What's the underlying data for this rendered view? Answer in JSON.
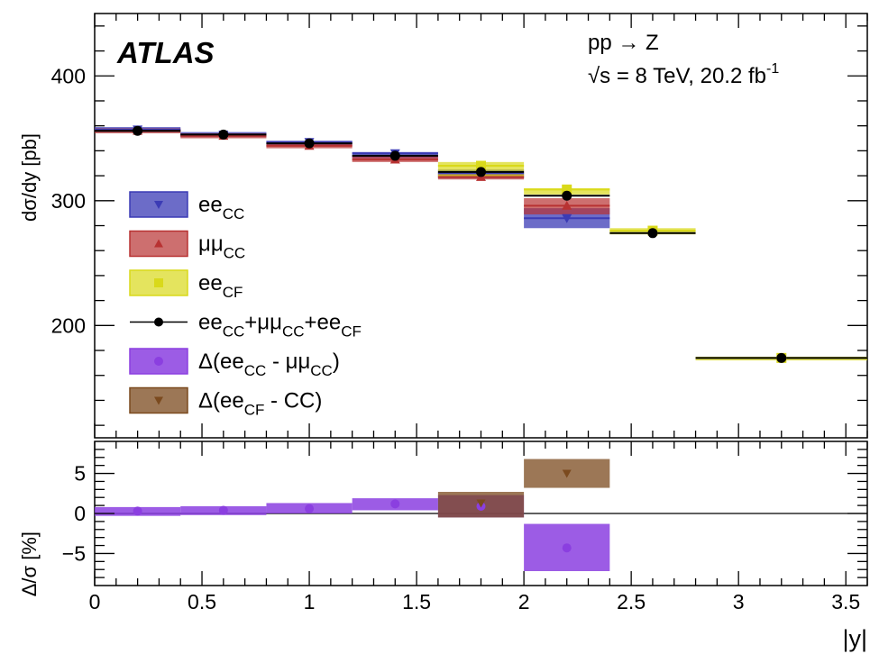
{
  "chart_data": {
    "type": "step-histogram",
    "experiment": "ATLAS",
    "process": "pp → Z",
    "energy_lumi": {
      "sqrt_s": "√s = 8 TeV, 20.2 fb",
      "lumi_exp": "-1"
    },
    "x_label": "|y|",
    "x_range": [
      0,
      3.6
    ],
    "x_ticks": [
      "0",
      "0.5",
      "1",
      "1.5",
      "2",
      "2.5",
      "3",
      "3.5"
    ],
    "bins": [
      [
        0.0,
        0.4
      ],
      [
        0.4,
        0.8
      ],
      [
        0.8,
        1.2
      ],
      [
        1.2,
        1.6
      ],
      [
        1.6,
        2.0
      ],
      [
        2.0,
        2.4
      ],
      [
        2.4,
        2.8
      ],
      [
        2.8,
        3.6
      ]
    ],
    "top_panel": {
      "y_label": "dσ/dy [pb]",
      "y_range": [
        110,
        450
      ],
      "y_ticks": [
        "200",
        "300",
        "400"
      ],
      "series": [
        {
          "name": "ee_CC",
          "color": "#3b3bb5",
          "marker": "triangle-down",
          "values": [
            357,
            353,
            347,
            338,
            322,
            286,
            null,
            null
          ],
          "band_lo": [
            355,
            351,
            344,
            334,
            318,
            278,
            null,
            null
          ],
          "band_hi": [
            359,
            355,
            348,
            339,
            325,
            294,
            null,
            null
          ]
        },
        {
          "name": "μμ_CC",
          "color": "#b83232",
          "marker": "triangle-up",
          "values": [
            356,
            352,
            344,
            333,
            319,
            296,
            null,
            null
          ],
          "band_lo": [
            354,
            350,
            342,
            331,
            317,
            289,
            null,
            null
          ],
          "band_hi": [
            358,
            354,
            346,
            336,
            322,
            302,
            null,
            null
          ]
        },
        {
          "name": "ee_CF",
          "color": "#d9d91a",
          "marker": "square",
          "values": [
            null,
            null,
            null,
            null,
            328,
            309,
            276,
            174
          ],
          "band_lo": [
            null,
            null,
            null,
            null,
            319,
            305,
            273,
            172
          ],
          "band_hi": [
            null,
            null,
            null,
            null,
            331,
            310,
            278,
            175
          ]
        },
        {
          "name": "ee_CC+μμ_CC+ee_CF",
          "color": "#000000",
          "marker": "circle",
          "values": [
            356,
            353,
            346,
            336,
            323,
            304,
            274,
            174
          ]
        }
      ]
    },
    "bottom_panel": {
      "y_label": "Δ/σ [%]",
      "y_range": [
        -9,
        9
      ],
      "y_ticks": [
        "−5",
        "0",
        "5"
      ],
      "series": [
        {
          "name": "Δ(ee_CC - μμ_CC)",
          "color": "#8b3fe0",
          "marker": "circle",
          "values": [
            0.3,
            0.4,
            0.6,
            1.2,
            0.9,
            -4.3,
            null,
            null
          ],
          "band_lo": [
            -0.3,
            -0.2,
            0.0,
            0.4,
            -0.5,
            -7.2,
            null,
            null
          ],
          "band_hi": [
            0.8,
            0.9,
            1.3,
            1.9,
            2.3,
            -1.3,
            null,
            null
          ]
        },
        {
          "name": "Δ(ee_CF - CC)",
          "color": "#7b4a1e",
          "marker": "triangle-down",
          "values": [
            null,
            null,
            null,
            null,
            1.3,
            5.0,
            null,
            null
          ],
          "band_lo": [
            null,
            null,
            null,
            null,
            -0.5,
            3.2,
            null,
            null
          ],
          "band_hi": [
            null,
            null,
            null,
            null,
            2.7,
            6.8,
            null,
            null
          ]
        }
      ]
    },
    "legend": [
      {
        "main": "ee",
        "sub": "CC",
        "suffix": "",
        "series": "ee_CC"
      },
      {
        "main": "μμ",
        "sub": "CC",
        "suffix": "",
        "series": "μμ_CC"
      },
      {
        "main": "ee",
        "sub": "CF",
        "suffix": "",
        "series": "ee_CF"
      },
      {
        "main": "ee",
        "sub": "CC",
        "suffix": "+μμ",
        "sub2": "CC",
        "suffix2": "+ee",
        "sub3": "CF",
        "series": "ee_CC+μμ_CC+ee_CF"
      },
      {
        "main": "Δ(ee",
        "sub": "CC",
        "suffix": " - μμ",
        "sub2": "CC",
        "suffix2": ")",
        "series": "Δ(ee_CC - μμ_CC)"
      },
      {
        "main": "Δ(ee",
        "sub": "CF",
        "suffix": " - CC)",
        "series": "Δ(ee_CF - CC)"
      }
    ]
  }
}
